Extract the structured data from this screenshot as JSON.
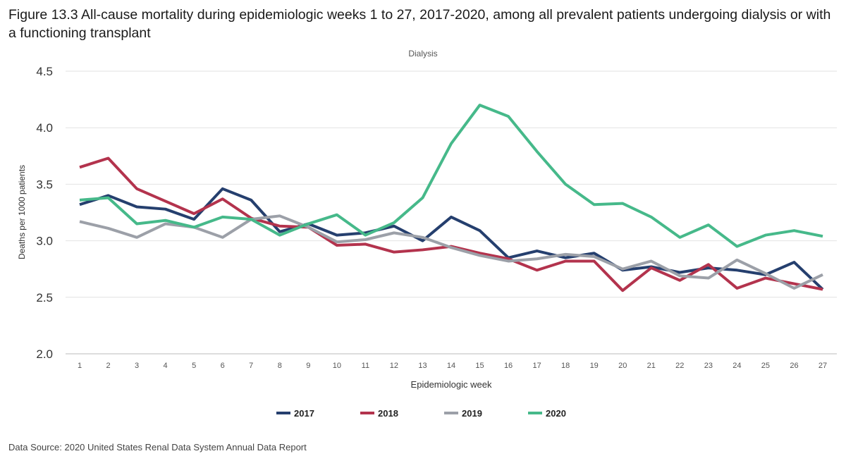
{
  "title": "Figure 13.3 All-cause mortality during epidemiologic weeks 1 to 27, 2017-2020, among all prevalent patients undergoing dialysis or with a functioning transplant",
  "source": "Data Source: 2020 United States Renal Data System Annual Data Report",
  "chart_data": {
    "type": "line",
    "title": "Dialysis",
    "xlabel": "Epidemiologic week",
    "ylabel": "Deaths per 1000 patients",
    "ylim": [
      2.0,
      4.5
    ],
    "yticks": [
      "2.0",
      "2.5",
      "3.0",
      "3.5",
      "4.0",
      "4.5"
    ],
    "grid": true,
    "legend": "bottom",
    "x": [
      1,
      2,
      3,
      4,
      5,
      6,
      7,
      8,
      9,
      10,
      11,
      12,
      13,
      14,
      15,
      16,
      17,
      18,
      19,
      20,
      21,
      22,
      23,
      24,
      25,
      26,
      27
    ],
    "series": [
      {
        "name": "2017",
        "color": "#253f6e",
        "values": [
          3.32,
          3.4,
          3.3,
          3.28,
          3.19,
          3.46,
          3.36,
          3.08,
          3.15,
          3.05,
          3.07,
          3.13,
          3.0,
          3.21,
          3.09,
          2.85,
          2.91,
          2.85,
          2.89,
          2.74,
          2.77,
          2.72,
          2.76,
          2.74,
          2.7,
          2.81,
          2.57
        ]
      },
      {
        "name": "2018",
        "color": "#b3334d",
        "values": [
          3.65,
          3.73,
          3.46,
          3.35,
          3.24,
          3.37,
          3.2,
          3.13,
          3.12,
          2.96,
          2.97,
          2.9,
          2.92,
          2.95,
          2.89,
          2.84,
          2.74,
          2.82,
          2.82,
          2.56,
          2.76,
          2.65,
          2.79,
          2.58,
          2.67,
          2.62,
          2.57
        ]
      },
      {
        "name": "2019",
        "color": "#9ca0a8",
        "values": [
          3.17,
          3.11,
          3.03,
          3.15,
          3.12,
          3.03,
          3.19,
          3.22,
          3.12,
          2.99,
          3.01,
          3.07,
          3.03,
          2.94,
          2.87,
          2.82,
          2.84,
          2.88,
          2.86,
          2.75,
          2.82,
          2.69,
          2.67,
          2.83,
          2.71,
          2.58,
          2.7
        ]
      },
      {
        "name": "2020",
        "color": "#46b98a",
        "values": [
          3.36,
          3.38,
          3.15,
          3.18,
          3.12,
          3.21,
          3.19,
          3.05,
          3.15,
          3.23,
          3.05,
          3.16,
          3.38,
          3.86,
          4.2,
          4.1,
          3.79,
          3.5,
          3.32,
          3.33,
          3.21,
          3.03,
          3.14,
          2.95,
          3.05,
          3.09,
          3.04
        ]
      }
    ]
  }
}
